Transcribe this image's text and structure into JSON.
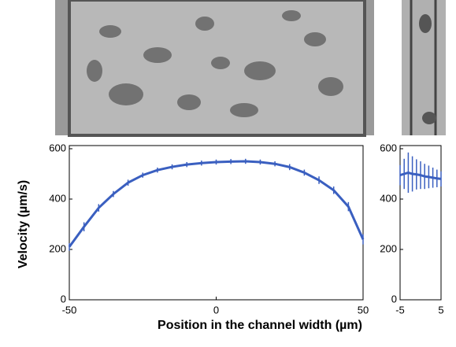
{
  "chart_data": [
    {
      "type": "errorbar-line",
      "color": "#3a5fc0",
      "ylabel": "Velocity (µm/s)",
      "xlabel": "Position in the channel width (µm)",
      "x": [
        -50,
        -45,
        -40,
        -35,
        -30,
        -25,
        -20,
        -15,
        -10,
        -5,
        0,
        5,
        10,
        15,
        20,
        25,
        30,
        35,
        40,
        45,
        50
      ],
      "values": [
        210,
        290,
        365,
        420,
        465,
        495,
        515,
        528,
        537,
        543,
        547,
        549,
        550,
        547,
        540,
        527,
        505,
        475,
        435,
        370,
        240
      ],
      "errors": [
        15,
        18,
        15,
        12,
        12,
        10,
        10,
        10,
        10,
        10,
        10,
        10,
        10,
        10,
        10,
        12,
        12,
        15,
        15,
        18,
        20
      ],
      "xlim": [
        -50,
        50
      ],
      "xticks": [
        -50,
        0,
        50
      ],
      "ylim": [
        0,
        600
      ],
      "yticks": [
        0,
        200,
        400,
        600
      ]
    },
    {
      "type": "errorbar-line",
      "color": "#3a5fc0",
      "x": [
        -5,
        -4,
        -3,
        -2,
        -1,
        0,
        1,
        2,
        3,
        4,
        5
      ],
      "values": [
        495,
        500,
        505,
        500,
        498,
        495,
        490,
        488,
        485,
        482,
        480
      ],
      "errors": [
        40,
        60,
        80,
        70,
        60,
        55,
        50,
        45,
        40,
        35,
        30
      ],
      "xlim": [
        -5,
        5
      ],
      "xticks": [
        -5,
        5
      ],
      "ylim": [
        0,
        600
      ],
      "yticks": [
        0,
        200,
        400,
        600
      ]
    }
  ]
}
